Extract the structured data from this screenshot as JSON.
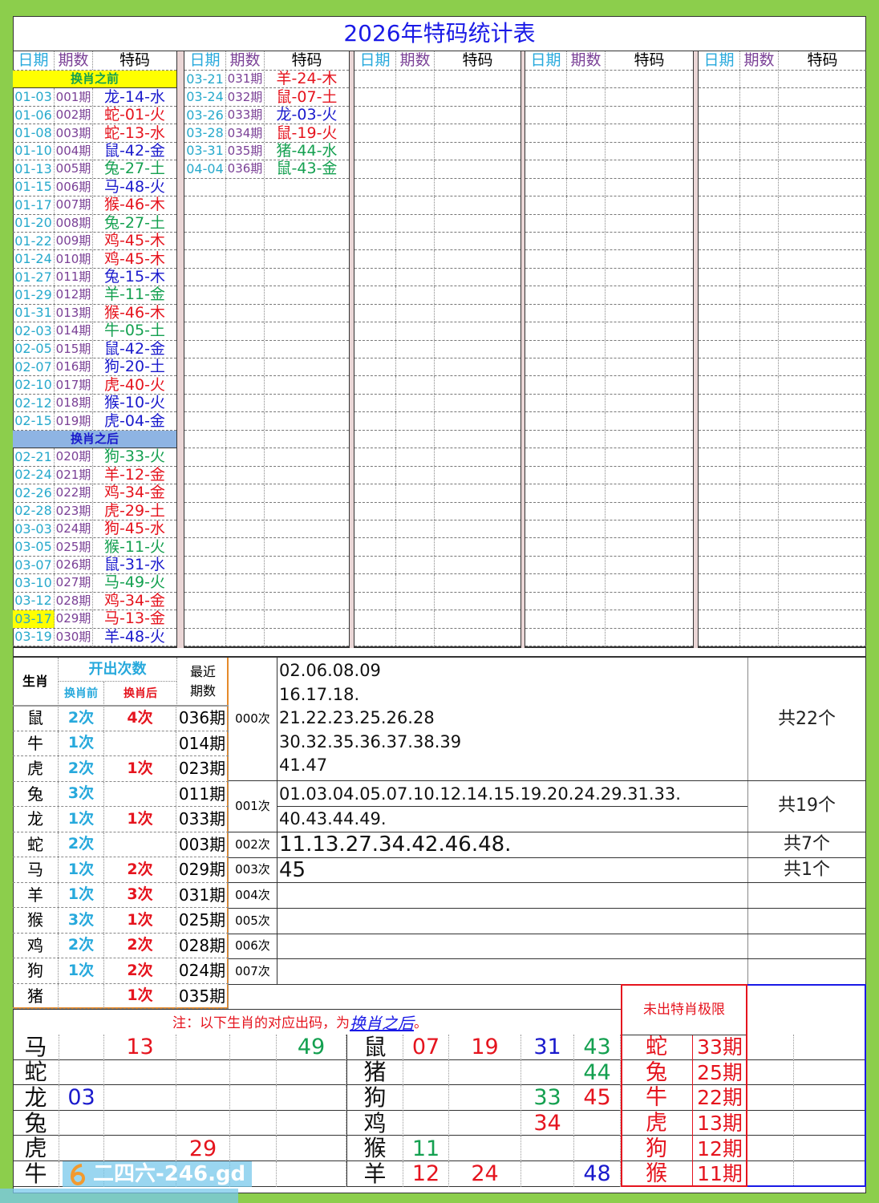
{
  "title": "2026年特码统计表",
  "headers": {
    "date": "日期",
    "qi": "期数",
    "tema": "特码"
  },
  "sections": {
    "before": "换肖之前",
    "after": "换肖之后"
  },
  "colors": {
    "r": "#e5141e",
    "b": "#1a1acc",
    "g": "#14a050",
    "before_bg": "#ffff00",
    "after_bg": "#8eb4e3",
    "border_green": "#8cce4c"
  },
  "draws_before": [
    [
      "01-03",
      "001期",
      "龙-14-水",
      "b"
    ],
    [
      "01-06",
      "002期",
      "蛇-01-火",
      "r"
    ],
    [
      "01-08",
      "003期",
      "蛇-13-水",
      "r"
    ],
    [
      "01-10",
      "004期",
      "鼠-42-金",
      "b"
    ],
    [
      "01-13",
      "005期",
      "兔-27-土",
      "g"
    ],
    [
      "01-15",
      "006期",
      "马-48-火",
      "b"
    ],
    [
      "01-17",
      "007期",
      "猴-46-木",
      "r"
    ],
    [
      "01-20",
      "008期",
      "兔-27-土",
      "g"
    ],
    [
      "01-22",
      "009期",
      "鸡-45-木",
      "r"
    ],
    [
      "01-24",
      "010期",
      "鸡-45-木",
      "r"
    ],
    [
      "01-27",
      "011期",
      "兔-15-木",
      "b"
    ],
    [
      "01-29",
      "012期",
      "羊-11-金",
      "g"
    ],
    [
      "01-31",
      "013期",
      "猴-46-木",
      "r"
    ],
    [
      "02-03",
      "014期",
      "牛-05-土",
      "g"
    ],
    [
      "02-05",
      "015期",
      "鼠-42-金",
      "b"
    ],
    [
      "02-07",
      "016期",
      "狗-20-土",
      "b"
    ],
    [
      "02-10",
      "017期",
      "虎-40-火",
      "r"
    ],
    [
      "02-12",
      "018期",
      "猴-10-火",
      "b"
    ],
    [
      "02-15",
      "019期",
      "虎-04-金",
      "b"
    ]
  ],
  "draws_after": [
    [
      "02-21",
      "020期",
      "狗-33-火",
      "g"
    ],
    [
      "02-24",
      "021期",
      "羊-12-金",
      "r"
    ],
    [
      "02-26",
      "022期",
      "鸡-34-金",
      "r"
    ],
    [
      "02-28",
      "023期",
      "虎-29-土",
      "r"
    ],
    [
      "03-03",
      "024期",
      "狗-45-水",
      "r"
    ],
    [
      "03-05",
      "025期",
      "猴-11-火",
      "g"
    ],
    [
      "03-07",
      "026期",
      "鼠-31-水",
      "b"
    ],
    [
      "03-10",
      "027期",
      "马-49-火",
      "g"
    ],
    [
      "03-12",
      "028期",
      "鸡-34-金",
      "r"
    ],
    [
      "03-17",
      "029期",
      "马-13-金",
      "r",
      "highlight"
    ],
    [
      "03-19",
      "030期",
      "羊-48-火",
      "b"
    ]
  ],
  "draws_col2": [
    [
      "03-21",
      "031期",
      "羊-24-木",
      "r"
    ],
    [
      "03-24",
      "032期",
      "鼠-07-土",
      "r"
    ],
    [
      "03-26",
      "033期",
      "龙-03-火",
      "b"
    ],
    [
      "03-28",
      "034期",
      "鼠-19-火",
      "r"
    ],
    [
      "03-31",
      "035期",
      "猪-44-水",
      "g"
    ],
    [
      "04-04",
      "036期",
      "鼠-43-金",
      "g"
    ]
  ],
  "stats": {
    "h_zodiac": "生肖",
    "h_count": "开出次数",
    "h_before": "换肖前",
    "h_after": "换肖后",
    "h_recent": "最近期数",
    "rows": [
      [
        "鼠",
        "2次",
        "4次",
        "036期"
      ],
      [
        "牛",
        "1次",
        "",
        "014期"
      ],
      [
        "虎",
        "2次",
        "1次",
        "023期"
      ],
      [
        "兔",
        "3次",
        "",
        "011期"
      ],
      [
        "龙",
        "1次",
        "1次",
        "033期"
      ],
      [
        "蛇",
        "2次",
        "",
        "003期"
      ],
      [
        "马",
        "1次",
        "2次",
        "029期"
      ],
      [
        "羊",
        "1次",
        "3次",
        "031期"
      ],
      [
        "猴",
        "3次",
        "1次",
        "025期"
      ],
      [
        "鸡",
        "2次",
        "2次",
        "028期"
      ],
      [
        "狗",
        "1次",
        "2次",
        "024期"
      ],
      [
        "猪",
        "",
        "1次",
        "035期"
      ]
    ]
  },
  "counts": [
    {
      "label": "000次",
      "lines": [
        "02.06.08.09",
        "16.17.18.",
        "21.22.23.25.26.28",
        "30.32.35.36.37.38.39",
        "41.47"
      ],
      "total": "共22个"
    },
    {
      "label": "001次",
      "lines": [
        "01.03.04.05.07.10.12.14.15.19.20.24.29.31.33.",
        "40.43.44.49."
      ],
      "total": "共19个"
    },
    {
      "label": "002次",
      "lines": [
        "11.13.27.34.42.46.48."
      ],
      "total": "共7个"
    },
    {
      "label": "003次",
      "lines": [
        "45"
      ],
      "total": "共1个"
    },
    {
      "label": "004次",
      "lines": [],
      "total": ""
    },
    {
      "label": "005次",
      "lines": [],
      "total": ""
    },
    {
      "label": "006次",
      "lines": [],
      "total": ""
    },
    {
      "label": "007次",
      "lines": [],
      "total": ""
    }
  ],
  "note": {
    "prefix": "注：以下生肖的对应出码，为",
    "link": "换肖之后",
    "suffix": "。"
  },
  "limit_title": "未出特肖极限",
  "bottom_left": [
    [
      "马",
      [
        "",
        "13r",
        "",
        "",
        "49g"
      ]
    ],
    [
      "蛇",
      [
        "",
        "",
        "",
        "",
        ""
      ]
    ],
    [
      "龙",
      [
        "03b",
        "",
        "",
        "",
        ""
      ]
    ],
    [
      "兔",
      [
        "",
        "",
        "",
        "",
        ""
      ]
    ],
    [
      "虎",
      [
        "",
        "",
        "29r",
        "",
        ""
      ]
    ],
    [
      "牛",
      [
        "",
        "",
        "",
        "",
        ""
      ]
    ]
  ],
  "bottom_right": [
    [
      "鼠",
      [
        "07r",
        "19r",
        "31b",
        "43g"
      ]
    ],
    [
      "猪",
      [
        "",
        "",
        "",
        "44g"
      ]
    ],
    [
      "狗",
      [
        "",
        "",
        "33g",
        "45r"
      ]
    ],
    [
      "鸡",
      [
        "",
        "",
        "34r",
        ""
      ]
    ],
    [
      "猴",
      [
        "11g",
        "",
        "",
        ""
      ]
    ],
    [
      "羊",
      [
        "12r",
        "24r",
        "",
        "48b"
      ]
    ]
  ],
  "limits": [
    [
      "蛇",
      "33期"
    ],
    [
      "兔",
      "25期"
    ],
    [
      "牛",
      "22期"
    ],
    [
      "虎",
      "13期"
    ],
    [
      "狗",
      "12期"
    ],
    [
      "猴",
      "11期"
    ]
  ],
  "watermark": "二四六-246.gd"
}
